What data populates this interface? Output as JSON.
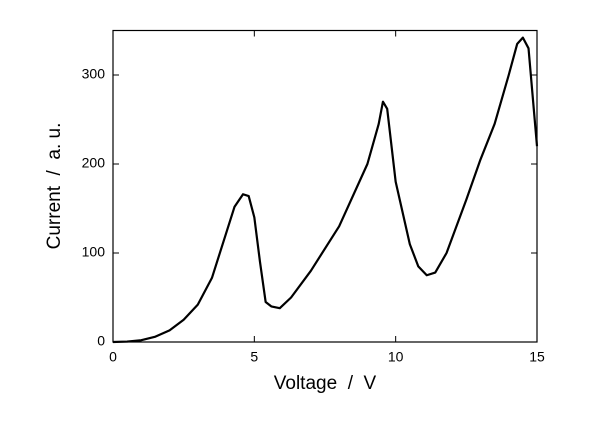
{
  "chart_data": {
    "type": "line",
    "x_label": "Voltage  /  V",
    "y_label": "Current  /  a. u.",
    "x": [
      0,
      0.5,
      1,
      1.5,
      2,
      2.5,
      3,
      3.5,
      4,
      4.3,
      4.6,
      4.8,
      5,
      5.2,
      5.4,
      5.6,
      5.9,
      6.3,
      7,
      8,
      9,
      9.4,
      9.55,
      9.7,
      10,
      10.5,
      10.8,
      11.1,
      11.4,
      11.8,
      12.5,
      13,
      13.5,
      14,
      14.3,
      14.5,
      14.7,
      15
    ],
    "series": [
      {
        "color": "#000000",
        "values": [
          0,
          0.5,
          2,
          6,
          13,
          25,
          42,
          72,
          122,
          152,
          166,
          164,
          140,
          90,
          45,
          40,
          38,
          50,
          80,
          130,
          200,
          245,
          270,
          262,
          180,
          110,
          85,
          75,
          78,
          100,
          160,
          205,
          245,
          300,
          335,
          342,
          330,
          220
        ]
      }
    ],
    "xlim": [
      0,
      15
    ],
    "xticks": [
      0,
      5,
      10,
      15
    ],
    "ylim": [
      0,
      350
    ],
    "yticks": [
      0,
      100,
      200,
      300
    ]
  }
}
